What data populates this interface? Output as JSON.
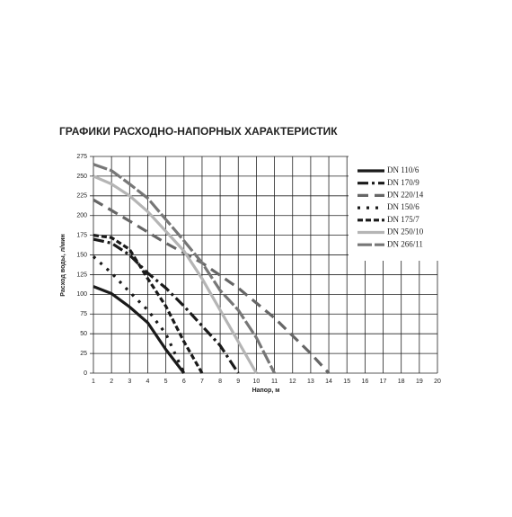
{
  "chart_data": {
    "type": "line",
    "title": "ГРАФИКИ РАСХОДНО-НАПОРНЫХ ХАРАКТЕРИСТИК",
    "x_label": "Напор, м",
    "y_label": "Расход воды, л/мин",
    "xlim": [
      1,
      20
    ],
    "ylim": [
      0,
      275
    ],
    "xticks": [
      1,
      2,
      3,
      4,
      5,
      6,
      7,
      8,
      9,
      10,
      11,
      12,
      13,
      14,
      15,
      16,
      17,
      18,
      19,
      20
    ],
    "yticks": [
      0,
      25,
      50,
      75,
      100,
      125,
      150,
      175,
      200,
      225,
      250,
      275
    ],
    "grid": true,
    "series": [
      {
        "name": "DN 110/6",
        "color": "#1a1a1a",
        "dash": "none",
        "x": [
          1,
          2,
          3,
          4,
          5,
          6
        ],
        "values": [
          110,
          101,
          84,
          64,
          30,
          0
        ]
      },
      {
        "name": "DN 170/9",
        "color": "#1a1a1a",
        "dash": "12,4,3,4",
        "x": [
          1,
          2,
          3,
          4,
          5,
          6,
          7,
          8,
          9
        ],
        "values": [
          170,
          165,
          150,
          127,
          108,
          85,
          60,
          35,
          0
        ]
      },
      {
        "name": "DN 220/14",
        "color": "#666666",
        "dash": "12,7",
        "x": [
          1,
          3,
          5,
          7,
          9,
          11,
          13,
          14
        ],
        "values": [
          220,
          193,
          165,
          140,
          108,
          70,
          25,
          0
        ]
      },
      {
        "name": "DN 150/6",
        "color": "#1a1a1a",
        "dash": "3,7",
        "x": [
          1,
          2,
          3,
          4,
          5,
          6
        ],
        "values": [
          148,
          127,
          103,
          80,
          50,
          0
        ]
      },
      {
        "name": "DN 175/7",
        "color": "#1a1a1a",
        "dash": "6,3",
        "x": [
          1,
          2,
          3,
          4,
          5,
          6,
          7
        ],
        "values": [
          175,
          172,
          157,
          120,
          85,
          40,
          0
        ]
      },
      {
        "name": "DN 250/10",
        "color": "#b5b5b5",
        "dash": "none",
        "x": [
          1,
          2,
          3,
          4,
          5,
          6,
          7,
          8,
          9,
          10
        ],
        "values": [
          250,
          240,
          225,
          205,
          180,
          155,
          120,
          80,
          40,
          0
        ]
      },
      {
        "name": "DN 266/11",
        "color": "#777777",
        "dash": "16,3",
        "x": [
          1,
          2,
          3,
          4,
          5,
          6,
          7,
          8,
          9,
          10,
          11
        ],
        "values": [
          265,
          257,
          240,
          222,
          195,
          168,
          140,
          105,
          80,
          45,
          0
        ]
      }
    ]
  }
}
